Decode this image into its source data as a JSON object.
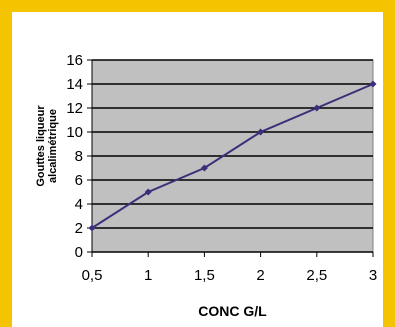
{
  "chart_data": {
    "type": "line",
    "x": [
      0.5,
      1,
      1.5,
      2,
      2.5,
      3
    ],
    "series": [
      {
        "values": [
          2,
          5,
          7,
          10,
          12,
          14
        ]
      }
    ],
    "x_tick_labels": [
      "0,5",
      "1",
      "1,5",
      "2",
      "2,5",
      "3"
    ],
    "y_tick_labels": [
      "0",
      "2",
      "4",
      "6",
      "8",
      "10",
      "12",
      "14",
      "16"
    ],
    "xlabel": "CONC G/L",
    "ylabel_line1": "Gouttes liqueur",
    "ylabel_line2": "alcalimétrique",
    "xlim": [
      0.5,
      3
    ],
    "ylim": [
      0,
      16
    ],
    "grid": true,
    "colors": {
      "frame": "#f5c400",
      "plot_area": "#c0c0c0",
      "line": "#3b2f7a",
      "grid": "#000000"
    }
  }
}
